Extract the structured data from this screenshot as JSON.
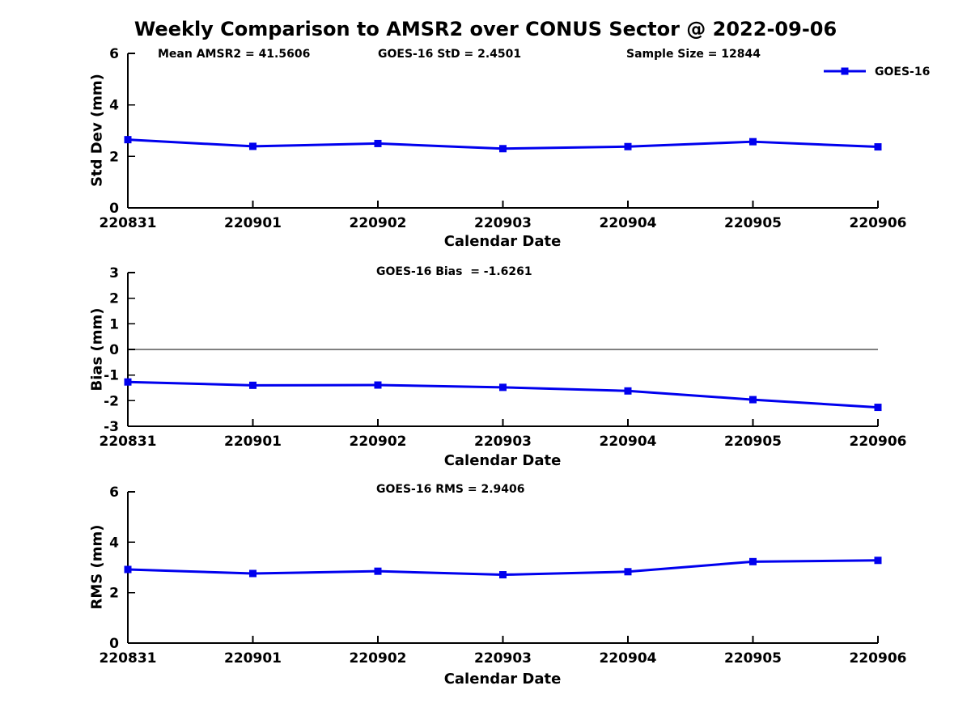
{
  "figure": {
    "title": "Weekly Comparison to AMSR2 over CONUS Sector @ 2022-09-06",
    "background": "#FFFFFF",
    "axis_color": "#000000",
    "legend": {
      "label": "GOES-16",
      "color": "#0000EE"
    }
  },
  "chart_data": [
    {
      "type": "line",
      "name": "std-dev-panel",
      "annotations": [
        "Mean AMSR2 = 41.5606",
        "GOES-16 StD = 2.4501",
        "Sample Size = 12844"
      ],
      "xlabel": "Calendar Date",
      "ylabel": "Std Dev (mm)",
      "categories": [
        "220831",
        "220901",
        "220902",
        "220903",
        "220904",
        "220905",
        "220906"
      ],
      "series": [
        {
          "name": "GOES-16",
          "color": "#0000EE",
          "values": [
            2.65,
            2.39,
            2.5,
            2.3,
            2.38,
            2.57,
            2.37
          ]
        }
      ],
      "ylim": [
        0,
        6
      ],
      "yticks": [
        0,
        2,
        4,
        6
      ],
      "grid": false,
      "zero_line": false,
      "legend_position": "top-right"
    },
    {
      "type": "line",
      "name": "bias-panel",
      "annotations": [
        "GOES-16 Bias  = -1.6261"
      ],
      "xlabel": "Calendar Date",
      "ylabel": "Bias (mm)",
      "categories": [
        "220831",
        "220901",
        "220902",
        "220903",
        "220904",
        "220905",
        "220906"
      ],
      "series": [
        {
          "name": "GOES-16",
          "color": "#0000EE",
          "values": [
            -1.27,
            -1.4,
            -1.39,
            -1.48,
            -1.62,
            -1.96,
            -2.26
          ]
        }
      ],
      "ylim": [
        -3,
        3
      ],
      "yticks": [
        -3,
        -2,
        -1,
        0,
        1,
        2,
        3
      ],
      "grid": false,
      "zero_line": true,
      "legend_position": "none"
    },
    {
      "type": "line",
      "name": "rms-panel",
      "annotations": [
        "GOES-16 RMS = 2.9406"
      ],
      "xlabel": "Calendar Date",
      "ylabel": "RMS (mm)",
      "categories": [
        "220831",
        "220901",
        "220902",
        "220903",
        "220904",
        "220905",
        "220906"
      ],
      "series": [
        {
          "name": "GOES-16",
          "color": "#0000EE",
          "values": [
            2.92,
            2.76,
            2.85,
            2.71,
            2.83,
            3.23,
            3.28
          ]
        }
      ],
      "ylim": [
        0,
        6
      ],
      "yticks": [
        0,
        2,
        4,
        6
      ],
      "grid": false,
      "zero_line": false,
      "legend_position": "none"
    }
  ]
}
